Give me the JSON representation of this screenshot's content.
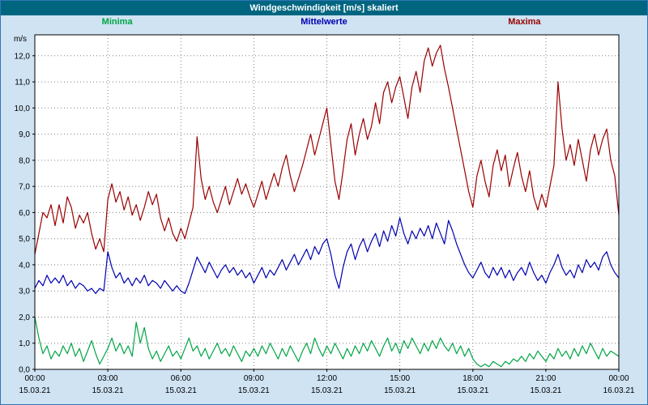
{
  "window": {
    "title": "Windgeschwindigkeit [m/s] skaliert"
  },
  "colors": {
    "titlebar": "#006680",
    "background": "#cfe3f3",
    "plot_bg": "#ffffff",
    "plot_border": "#000000",
    "grid": "#808080",
    "axis_text": "#000000"
  },
  "chart_data": {
    "type": "line",
    "title": "Windgeschwindigkeit [m/s] skaliert",
    "ylabel": "m/s",
    "xlabel": "",
    "grid": true,
    "legend_position": "top",
    "ylim": [
      0,
      12.8
    ],
    "y_ticks": [
      "0,0",
      "1,0",
      "2,0",
      "3,0",
      "4,0",
      "5,0",
      "6,0",
      "7,0",
      "8,0",
      "9,0",
      "10,0",
      "11,0",
      "12,0"
    ],
    "x_ticks": [
      {
        "time": "00:00",
        "date": "15.03.21"
      },
      {
        "time": "03:00",
        "date": "15.03.21"
      },
      {
        "time": "06:00",
        "date": "15.03.21"
      },
      {
        "time": "09:00",
        "date": "15.03.21"
      },
      {
        "time": "12:00",
        "date": "15.03.21"
      },
      {
        "time": "15:00",
        "date": "15.03.21"
      },
      {
        "time": "18:00",
        "date": "15.03.21"
      },
      {
        "time": "21:00",
        "date": "15.03.21"
      },
      {
        "time": "00:00",
        "date": "16.03.21"
      }
    ],
    "x_range_hours": [
      0,
      24
    ],
    "sample_interval_minutes": 10,
    "series": [
      {
        "name": "Minima",
        "color": "#00a544",
        "values": [
          2.0,
          1.2,
          0.6,
          0.9,
          0.4,
          0.7,
          0.5,
          0.9,
          0.6,
          1.0,
          0.5,
          0.8,
          0.3,
          0.7,
          1.1,
          0.6,
          0.2,
          0.5,
          0.8,
          1.2,
          0.7,
          1.0,
          0.6,
          0.9,
          0.5,
          1.8,
          1.0,
          1.6,
          0.8,
          0.4,
          0.7,
          0.3,
          0.6,
          0.9,
          0.5,
          0.7,
          0.4,
          0.8,
          1.2,
          0.7,
          0.9,
          0.5,
          0.8,
          0.4,
          0.7,
          1.0,
          0.6,
          0.8,
          0.5,
          0.9,
          0.6,
          0.3,
          0.7,
          0.5,
          0.8,
          0.5,
          0.9,
          0.6,
          1.0,
          0.7,
          0.4,
          0.8,
          0.5,
          0.9,
          0.6,
          0.3,
          0.7,
          1.0,
          0.6,
          1.2,
          0.8,
          0.5,
          0.9,
          0.6,
          1.0,
          0.7,
          0.4,
          0.8,
          0.5,
          0.9,
          0.6,
          1.0,
          0.7,
          1.1,
          0.8,
          0.5,
          0.9,
          1.2,
          0.7,
          1.0,
          0.6,
          1.1,
          0.8,
          1.2,
          0.9,
          0.6,
          1.0,
          0.7,
          1.1,
          0.8,
          1.2,
          0.9,
          0.7,
          1.0,
          0.6,
          0.9,
          0.5,
          0.8,
          0.4,
          0.2,
          0.1,
          0.2,
          0.1,
          0.3,
          0.2,
          0.1,
          0.3,
          0.2,
          0.4,
          0.3,
          0.5,
          0.3,
          0.6,
          0.4,
          0.7,
          0.5,
          0.3,
          0.6,
          0.4,
          0.8,
          0.5,
          0.7,
          0.4,
          0.8,
          0.5,
          0.9,
          0.6,
          1.0,
          0.7,
          0.4,
          0.8,
          0.5,
          0.7,
          0.6,
          0.5
        ]
      },
      {
        "name": "Mittelwerte",
        "color": "#0000b0",
        "values": [
          3.1,
          3.4,
          3.2,
          3.6,
          3.3,
          3.5,
          3.3,
          3.6,
          3.2,
          3.4,
          3.1,
          3.3,
          3.2,
          3.0,
          3.1,
          2.9,
          3.1,
          3.0,
          4.5,
          3.9,
          3.5,
          3.7,
          3.3,
          3.5,
          3.2,
          3.5,
          3.3,
          3.6,
          3.2,
          3.4,
          3.3,
          3.1,
          3.4,
          3.2,
          3.0,
          3.2,
          3.0,
          2.9,
          3.3,
          3.8,
          4.3,
          4.0,
          3.7,
          4.1,
          3.8,
          3.5,
          3.8,
          4.0,
          3.7,
          3.9,
          3.6,
          3.8,
          3.5,
          3.7,
          3.3,
          3.6,
          3.9,
          3.5,
          3.8,
          3.6,
          3.9,
          4.2,
          3.8,
          4.1,
          4.4,
          4.0,
          4.3,
          4.6,
          4.2,
          4.7,
          4.4,
          4.8,
          5.0,
          4.4,
          3.6,
          3.1,
          3.9,
          4.5,
          4.8,
          4.2,
          4.7,
          5.0,
          4.5,
          4.9,
          5.2,
          4.7,
          5.3,
          4.9,
          5.5,
          5.1,
          5.8,
          5.2,
          4.8,
          5.3,
          5.0,
          5.4,
          5.1,
          5.5,
          5.0,
          5.6,
          5.2,
          4.8,
          5.7,
          5.3,
          4.8,
          4.4,
          4.0,
          3.7,
          3.5,
          3.8,
          4.1,
          3.7,
          3.5,
          3.9,
          3.6,
          3.9,
          3.5,
          3.8,
          3.4,
          3.7,
          3.9,
          3.6,
          4.1,
          3.7,
          3.4,
          3.6,
          3.3,
          3.7,
          4.0,
          4.4,
          3.9,
          3.6,
          3.8,
          3.5,
          4.0,
          3.7,
          4.2,
          3.9,
          4.1,
          3.8,
          4.3,
          4.5,
          4.0,
          3.7,
          3.5
        ]
      },
      {
        "name": "Maxima",
        "color": "#990000",
        "values": [
          4.4,
          5.2,
          6.0,
          5.8,
          6.3,
          5.5,
          6.3,
          5.6,
          6.6,
          6.2,
          5.4,
          5.9,
          5.6,
          6.0,
          5.2,
          4.6,
          5.0,
          4.5,
          6.5,
          7.1,
          6.4,
          6.8,
          6.1,
          6.6,
          5.9,
          6.3,
          5.7,
          6.2,
          6.8,
          6.3,
          6.7,
          5.8,
          5.3,
          5.8,
          5.2,
          4.9,
          5.4,
          5.0,
          5.6,
          6.2,
          8.9,
          7.3,
          6.5,
          7.0,
          6.4,
          6.0,
          6.5,
          7.0,
          6.3,
          6.8,
          7.3,
          6.7,
          7.1,
          6.6,
          6.2,
          6.7,
          7.2,
          6.5,
          7.0,
          7.5,
          7.0,
          7.7,
          8.2,
          7.4,
          6.8,
          7.3,
          7.8,
          8.4,
          9.0,
          8.2,
          8.8,
          9.4,
          10.0,
          8.6,
          7.2,
          6.5,
          7.6,
          8.8,
          9.4,
          8.2,
          9.0,
          9.6,
          8.8,
          9.3,
          10.2,
          9.4,
          10.6,
          11.0,
          10.2,
          10.8,
          11.2,
          10.4,
          9.6,
          10.8,
          11.4,
          10.6,
          11.8,
          12.3,
          11.6,
          12.1,
          12.4,
          11.5,
          10.8,
          10.0,
          9.2,
          8.4,
          7.6,
          6.8,
          6.2,
          7.4,
          8.0,
          7.2,
          6.6,
          7.8,
          8.4,
          7.6,
          8.2,
          7.0,
          7.7,
          8.3,
          7.4,
          6.8,
          7.6,
          6.6,
          6.1,
          6.7,
          6.2,
          7.0,
          7.8,
          11.0,
          9.2,
          8.0,
          8.6,
          7.8,
          8.8,
          8.0,
          7.2,
          8.4,
          9.0,
          8.2,
          8.8,
          9.2,
          8.0,
          7.4,
          5.9
        ]
      }
    ]
  }
}
